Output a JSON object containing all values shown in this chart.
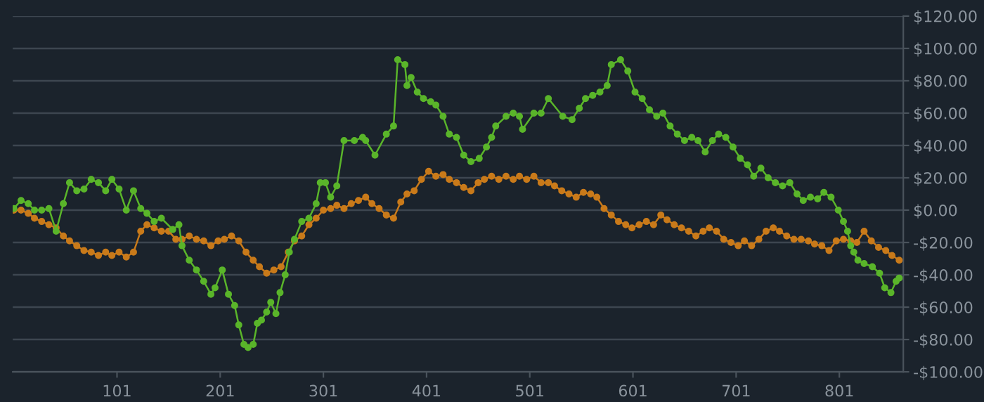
{
  "chart_data": {
    "type": "line",
    "marker": "circle",
    "line_style": "solid",
    "grid": "y",
    "legend": false,
    "xlim": [
      0,
      863
    ],
    "xticks": [
      101,
      201,
      301,
      401,
      501,
      601,
      701,
      801
    ],
    "ylim": [
      -100,
      120
    ],
    "yticks": [
      {
        "value": -100,
        "label": "-$100.00"
      },
      {
        "value": -80,
        "label": "-$80.00"
      },
      {
        "value": -60,
        "label": "-$60.00"
      },
      {
        "value": -40,
        "label": "-$40.00"
      },
      {
        "value": -20,
        "label": "-$20.00"
      },
      {
        "value": 0,
        "label": "$0.00"
      },
      {
        "value": 20,
        "label": "$20.00"
      },
      {
        "value": 40,
        "label": "$40.00"
      },
      {
        "value": 60,
        "label": "$60.00"
      },
      {
        "value": 80,
        "label": "$80.00"
      },
      {
        "value": 100,
        "label": "$100.00"
      },
      {
        "value": 120,
        "label": "$120.00"
      }
    ],
    "series": [
      {
        "color": "#c97a1a",
        "x": [
          1,
          8,
          15,
          21,
          28,
          35,
          42,
          49,
          55,
          62,
          69,
          76,
          83,
          90,
          96,
          103,
          110,
          117,
          124,
          130,
          137,
          144,
          151,
          158,
          164,
          171,
          178,
          185,
          192,
          199,
          205,
          212,
          219,
          226,
          233,
          239,
          246,
          253,
          260,
          267,
          273,
          280,
          287,
          294,
          301,
          308,
          314,
          321,
          328,
          335,
          342,
          348,
          355,
          362,
          369,
          376,
          382,
          389,
          396,
          403,
          410,
          417,
          423,
          430,
          437,
          444,
          451,
          457,
          464,
          471,
          478,
          485,
          491,
          498,
          505,
          512,
          519,
          525,
          532,
          539,
          546,
          553,
          560,
          566,
          573,
          580,
          587,
          594,
          600,
          607,
          614,
          621,
          628,
          634,
          641,
          648,
          655,
          662,
          669,
          675,
          682,
          689,
          696,
          703,
          709,
          716,
          723,
          730,
          737,
          743,
          750,
          757,
          764,
          771,
          777,
          784,
          791,
          798,
          805,
          812,
          818,
          825,
          832,
          839,
          846,
          852,
          859
        ],
        "values": [
          0,
          0,
          -2,
          -5,
          -7,
          -9,
          -11,
          -16,
          -19,
          -22,
          -25,
          -26,
          -28,
          -26,
          -28,
          -26,
          -29,
          -26,
          -13,
          -9,
          -11,
          -13,
          -13,
          -18,
          -18,
          -16,
          -18,
          -19,
          -22,
          -19,
          -18,
          -16,
          -19,
          -26,
          -31,
          -35,
          -39,
          -37,
          -35,
          -26,
          -19,
          -16,
          -9,
          -5,
          0,
          1,
          3,
          1,
          4,
          6,
          8,
          4,
          1,
          -3,
          -5,
          5,
          10,
          12,
          19,
          24,
          21,
          22,
          19,
          17,
          14,
          12,
          17,
          19,
          21,
          19,
          21,
          19,
          21,
          19,
          21,
          17,
          17,
          15,
          12,
          10,
          8,
          11,
          10,
          8,
          1,
          -3,
          -7,
          -9,
          -11,
          -9,
          -7,
          -9,
          -3,
          -6,
          -9,
          -11,
          -13,
          -16,
          -13,
          -11,
          -13,
          -18,
          -20,
          -22,
          -19,
          -22,
          -18,
          -13,
          -11,
          -13,
          -16,
          -18,
          -18,
          -19,
          -21,
          -22,
          -25,
          -19,
          -18,
          -19,
          -20,
          -13,
          -19,
          -23,
          -25,
          -28,
          -31
        ]
      },
      {
        "color": "#5ab52a",
        "x": [
          1,
          8,
          15,
          21,
          28,
          35,
          42,
          49,
          55,
          62,
          69,
          76,
          83,
          90,
          96,
          103,
          110,
          117,
          124,
          130,
          137,
          144,
          155,
          161,
          164,
          171,
          178,
          185,
          192,
          196,
          203,
          209,
          215,
          219,
          224,
          228,
          233,
          237,
          241,
          246,
          250,
          255,
          259,
          264,
          268,
          273,
          280,
          287,
          294,
          298,
          303,
          308,
          314,
          321,
          331,
          339,
          342,
          351,
          362,
          369,
          373,
          380,
          382,
          386,
          392,
          398,
          405,
          410,
          417,
          423,
          430,
          437,
          444,
          452,
          459,
          464,
          468,
          478,
          485,
          491,
          494,
          505,
          512,
          519,
          533,
          542,
          549,
          555,
          562,
          569,
          576,
          580,
          589,
          596,
          603,
          610,
          617,
          624,
          630,
          637,
          644,
          651,
          658,
          664,
          671,
          678,
          684,
          691,
          698,
          705,
          712,
          718,
          725,
          732,
          739,
          746,
          753,
          760,
          766,
          773,
          780,
          786,
          793,
          800,
          805,
          809,
          812,
          815,
          819,
          825,
          833,
          840,
          845,
          851,
          856,
          859
        ],
        "values": [
          1,
          6,
          4,
          0,
          0,
          1,
          -13,
          4,
          17,
          12,
          13,
          19,
          17,
          12,
          19,
          13,
          0,
          12,
          1,
          -2,
          -7,
          -5,
          -12,
          -9,
          -22,
          -31,
          -37,
          -44,
          -52,
          -48,
          -37,
          -52,
          -59,
          -71,
          -83,
          -85,
          -83,
          -70,
          -68,
          -63,
          -57,
          -64,
          -51,
          -40,
          -26,
          -18,
          -7,
          -5,
          4,
          17,
          17,
          8,
          15,
          43,
          43,
          45,
          43,
          34,
          47,
          52,
          93,
          90,
          77,
          82,
          73,
          69,
          67,
          65,
          58,
          47,
          45,
          34,
          30,
          32,
          39,
          45,
          52,
          58,
          60,
          58,
          50,
          60,
          60,
          69,
          58,
          56,
          63,
          69,
          71,
          73,
          77,
          90,
          93,
          86,
          73,
          69,
          62,
          58,
          60,
          52,
          47,
          43,
          45,
          43,
          36,
          43,
          47,
          45,
          39,
          32,
          28,
          21,
          26,
          20,
          17,
          15,
          17,
          10,
          6,
          8,
          7,
          11,
          8,
          0,
          -7,
          -13,
          -22,
          -26,
          -31,
          -33,
          -35,
          -39,
          -48,
          -51,
          -44,
          -42
        ]
      }
    ]
  }
}
